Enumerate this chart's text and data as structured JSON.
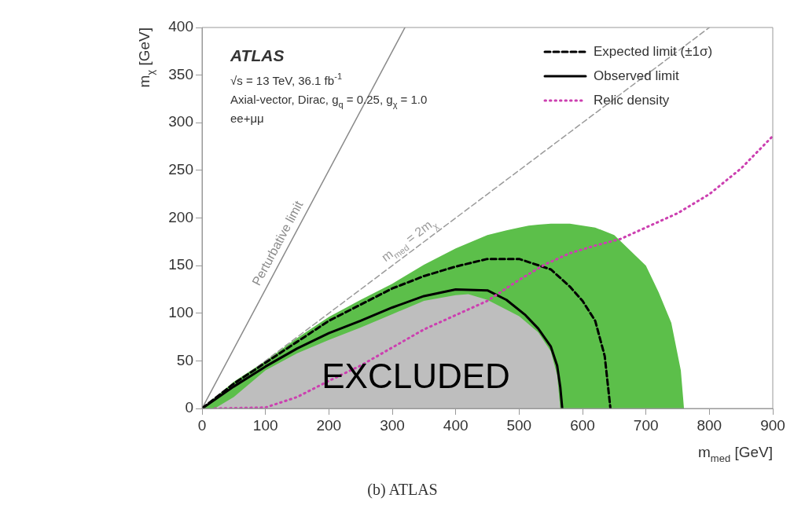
{
  "chart_data": {
    "type": "line",
    "title": "(b) ATLAS",
    "xlabel": "m$_{med}$ [GeV]",
    "ylabel": "m$_{χ}$ [GeV]",
    "xlim": [
      0,
      900
    ],
    "ylim": [
      0,
      400
    ],
    "xticks": [
      0,
      100,
      200,
      300,
      400,
      500,
      600,
      700,
      800,
      900
    ],
    "yticks": [
      0,
      50,
      100,
      150,
      200,
      250,
      300,
      350,
      400
    ],
    "legend": "top right",
    "annotations": [
      "ATLAS",
      "√s = 13 TeV, 36.1 fb$^{-1}$",
      "Axial-vector, Dirac, g$_{q}$ = 0.25, g$_{χ}$ = 1.0",
      "ee+μμ",
      "EXCLUDED",
      "Perturbative limit",
      "m$_{med}$ = 2m$_{χ}$"
    ],
    "series": [
      {
        "type": "area",
        "color": "#5cbf4a",
        "x": [
          0,
          50,
          100,
          150,
          200,
          250,
          300,
          350,
          400,
          450,
          480,
          500,
          515,
          530,
          550,
          580,
          600,
          620,
          650,
          700,
          720,
          740,
          755,
          760
        ],
        "values": [
          0,
          28,
          50,
          74,
          96,
          114,
          131,
          151,
          168,
          182,
          187,
          190,
          192,
          193,
          194,
          194,
          192,
          190,
          182,
          150,
          122,
          90,
          40,
          0
        ]
      },
      {
        "type": "area",
        "color": "#bebebe",
        "x": [
          20,
          50,
          100,
          150,
          200,
          250,
          300,
          350,
          400,
          420,
          450,
          500,
          530,
          550,
          560,
          565
        ],
        "values": [
          0,
          12,
          40,
          58,
          72,
          85,
          99,
          113,
          119,
          120,
          114,
          97,
          80,
          60,
          35,
          0
        ]
      },
      {
        "color": "#8a8a8a",
        "line_style": "solid",
        "x": [
          0,
          320
        ],
        "values": [
          0,
          400
        ]
      },
      {
        "color": "#9a9a9a",
        "line_style": "dashed",
        "x": [
          0,
          800
        ],
        "values": [
          0,
          400
        ]
      },
      {
        "name": "Expected limit (±1σ)",
        "color": "#000000",
        "line_style": "dashed",
        "x": [
          0,
          50,
          100,
          150,
          200,
          250,
          300,
          350,
          400,
          450,
          500,
          550,
          580,
          600,
          620,
          635,
          644
        ],
        "values": [
          0,
          26,
          48,
          70,
          92,
          109,
          126,
          139,
          149,
          157,
          157,
          146,
          128,
          113,
          92,
          55,
          0
        ]
      },
      {
        "name": "Observed limit",
        "color": "#000000",
        "line_style": "solid",
        "x": [
          0,
          50,
          100,
          150,
          200,
          250,
          300,
          350,
          400,
          450,
          480,
          510,
          530,
          550,
          560,
          565,
          568
        ],
        "values": [
          0,
          23,
          44,
          63,
          79,
          92,
          106,
          118,
          125,
          124,
          114,
          98,
          84,
          65,
          45,
          22,
          0
        ]
      },
      {
        "name": "Relic density",
        "color": "#cc3fb0",
        "line_style": "dotted",
        "x": [
          20,
          100,
          150,
          200,
          250,
          300,
          350,
          400,
          450,
          500,
          540,
          580,
          620,
          660,
          700,
          750,
          800,
          850,
          900
        ],
        "values": [
          0,
          1,
          12,
          29,
          45,
          64,
          83,
          98,
          113,
          135,
          151,
          163,
          171,
          178,
          190,
          205,
          225,
          252,
          286
        ]
      }
    ]
  }
}
